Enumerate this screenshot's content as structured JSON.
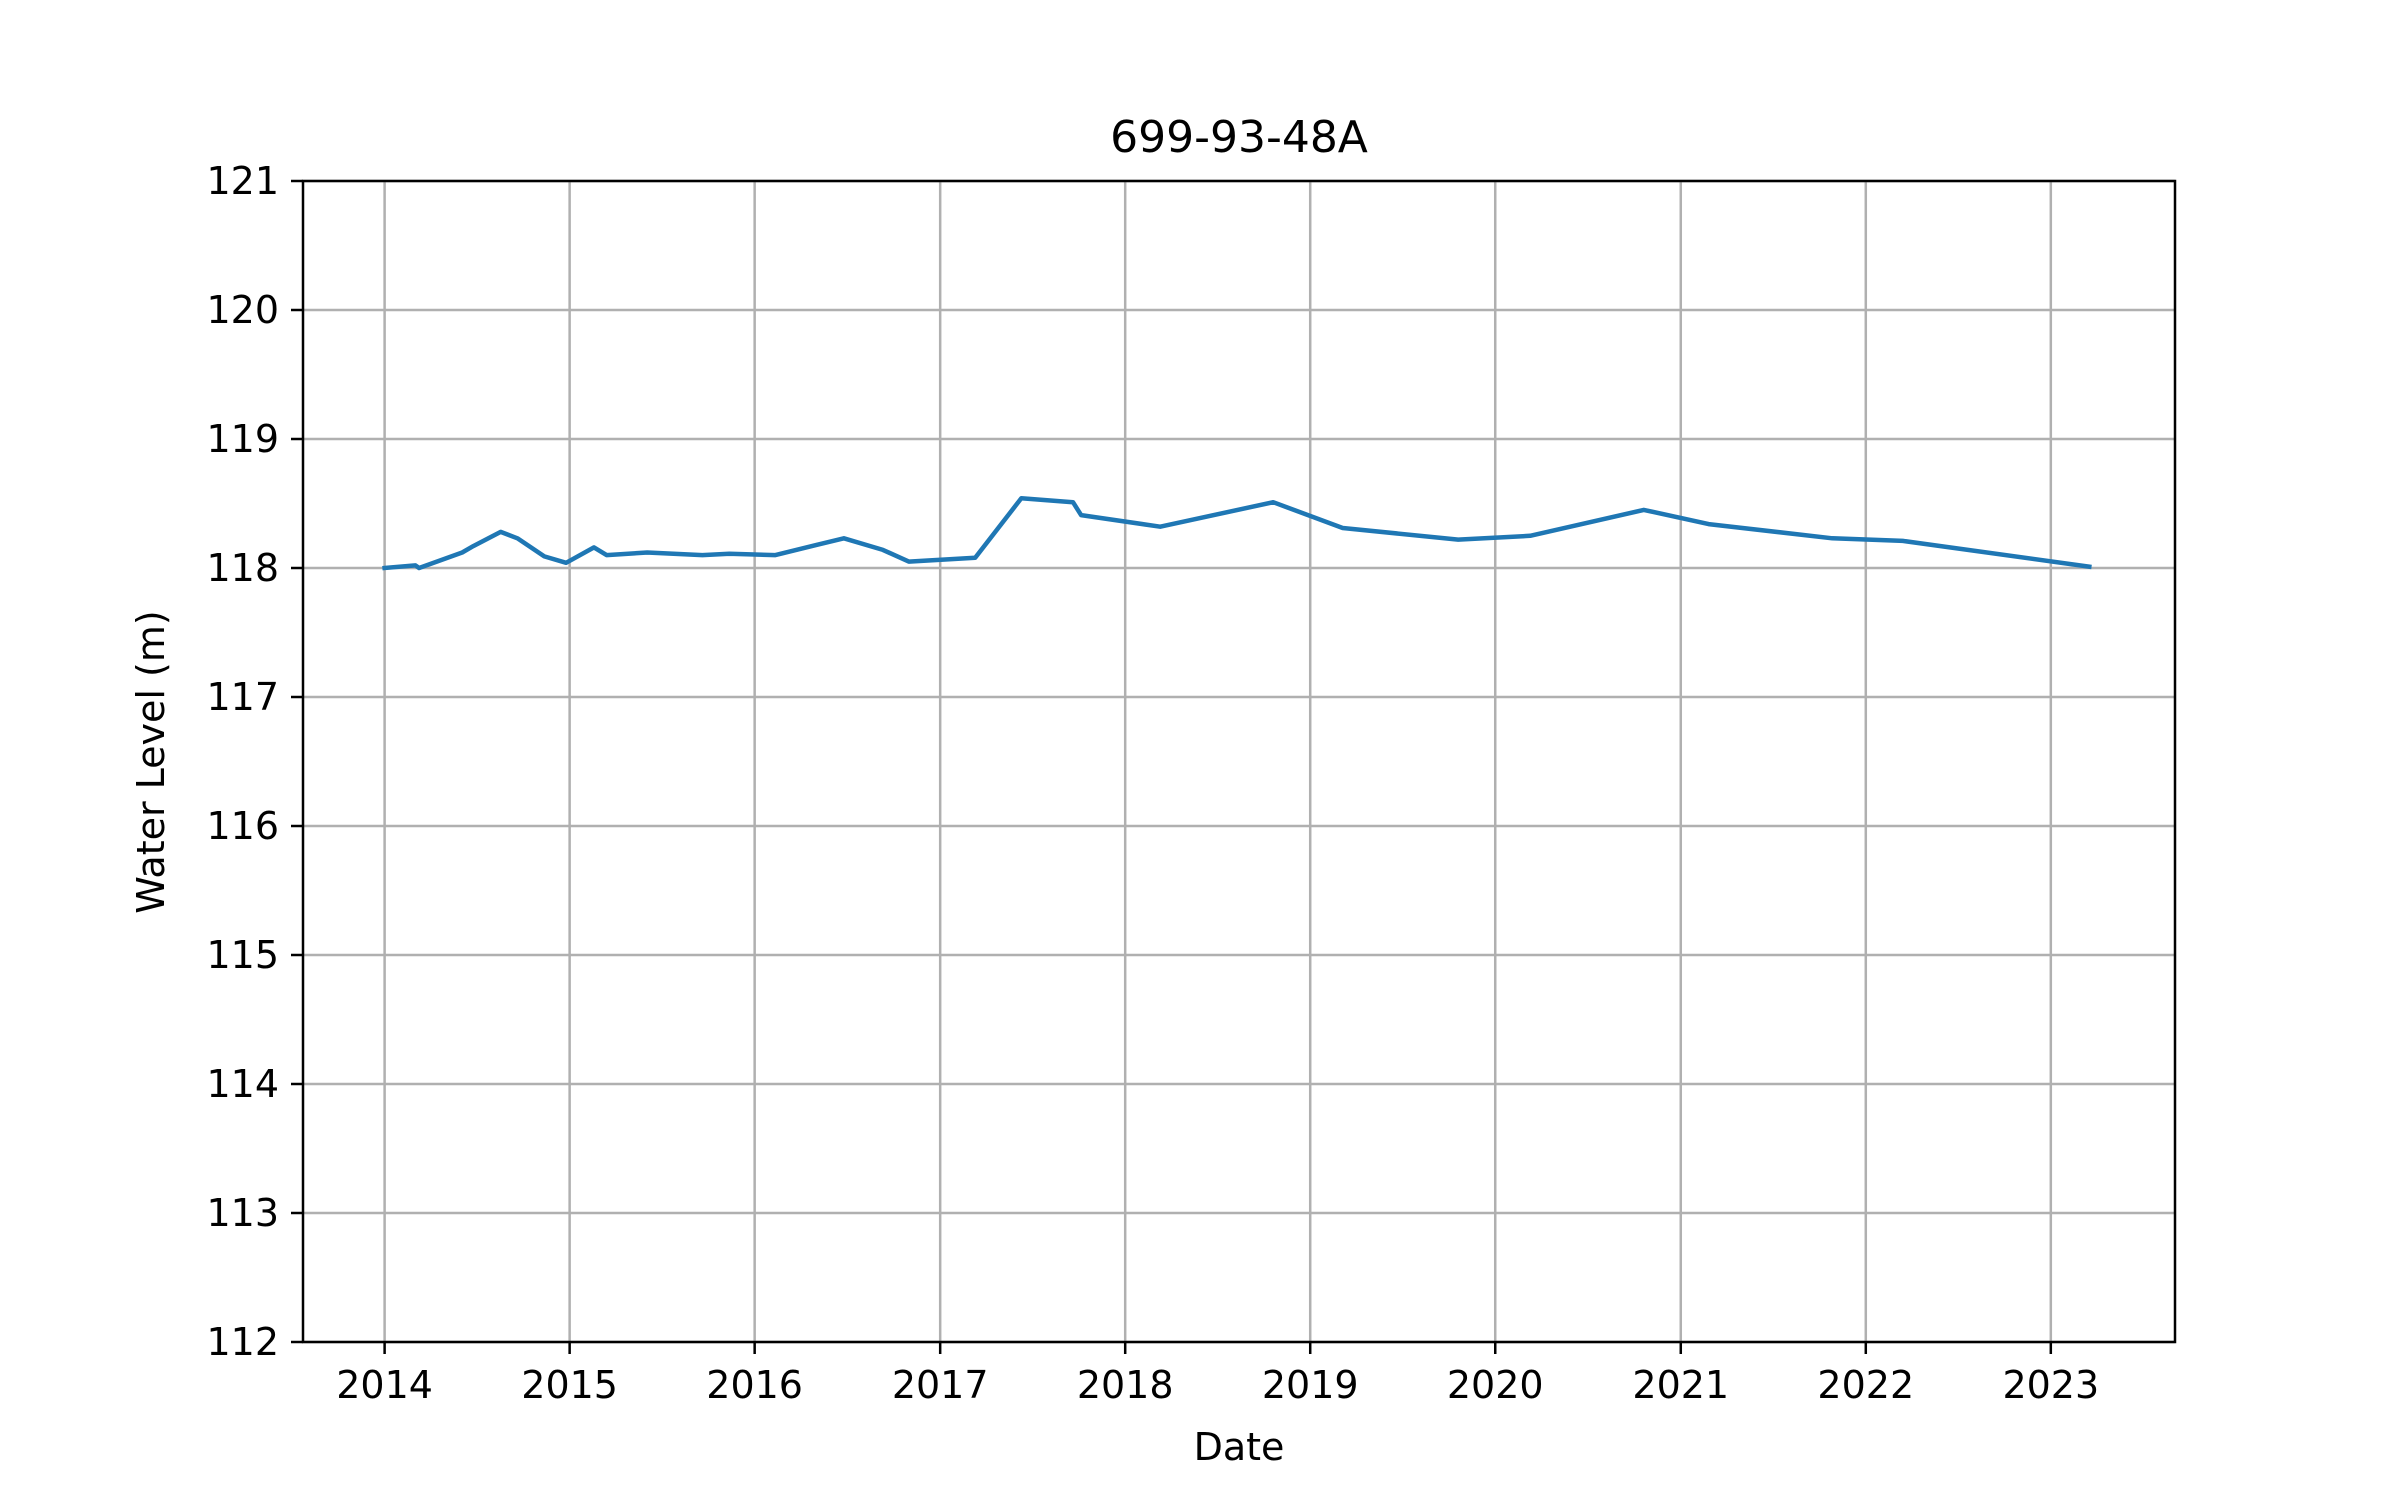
{
  "chart_data": {
    "type": "line",
    "title": "699-93-48A",
    "xlabel": "Date",
    "ylabel": "Water Level (m)",
    "x_ticks": [
      "2014",
      "2015",
      "2016",
      "2017",
      "2018",
      "2019",
      "2020",
      "2021",
      "2022",
      "2023"
    ],
    "y_ticks": [
      "112",
      "113",
      "114",
      "115",
      "116",
      "117",
      "118",
      "119",
      "120",
      "121"
    ],
    "ylim": [
      112,
      121
    ],
    "xlim": [
      "2013-07-24",
      "2023-09-03"
    ],
    "grid": true,
    "line_color": "#1f77b4",
    "series": [
      {
        "x": [
          "2014-01-01",
          "2014-03-03",
          "2014-03-10",
          "2014-06-03",
          "2014-06-25",
          "2014-08-18",
          "2014-09-20",
          "2014-11-12",
          "2014-12-25",
          "2015-02-18",
          "2015-03-15",
          "2015-06-03",
          "2015-09-20",
          "2015-11-12",
          "2016-02-11",
          "2016-05-03",
          "2016-06-25",
          "2016-09-10",
          "2016-10-31",
          "2017-03-11",
          "2017-06-10",
          "2017-09-20",
          "2017-10-06",
          "2018-03-11",
          "2018-10-20",
          "2019-03-06",
          "2019-10-20",
          "2020-03-10",
          "2020-10-20",
          "2021-02-25",
          "2021-10-27",
          "2022-03-15",
          "2023-03-18"
        ],
        "y": [
          118.0,
          118.02,
          118.0,
          118.12,
          118.17,
          118.28,
          118.23,
          118.09,
          118.04,
          118.16,
          118.1,
          118.12,
          118.1,
          118.11,
          118.1,
          118.18,
          118.23,
          118.14,
          118.05,
          118.08,
          118.54,
          118.51,
          118.41,
          118.32,
          118.51,
          118.31,
          118.22,
          118.25,
          118.45,
          118.34,
          118.23,
          118.21,
          118.01
        ]
      }
    ]
  }
}
